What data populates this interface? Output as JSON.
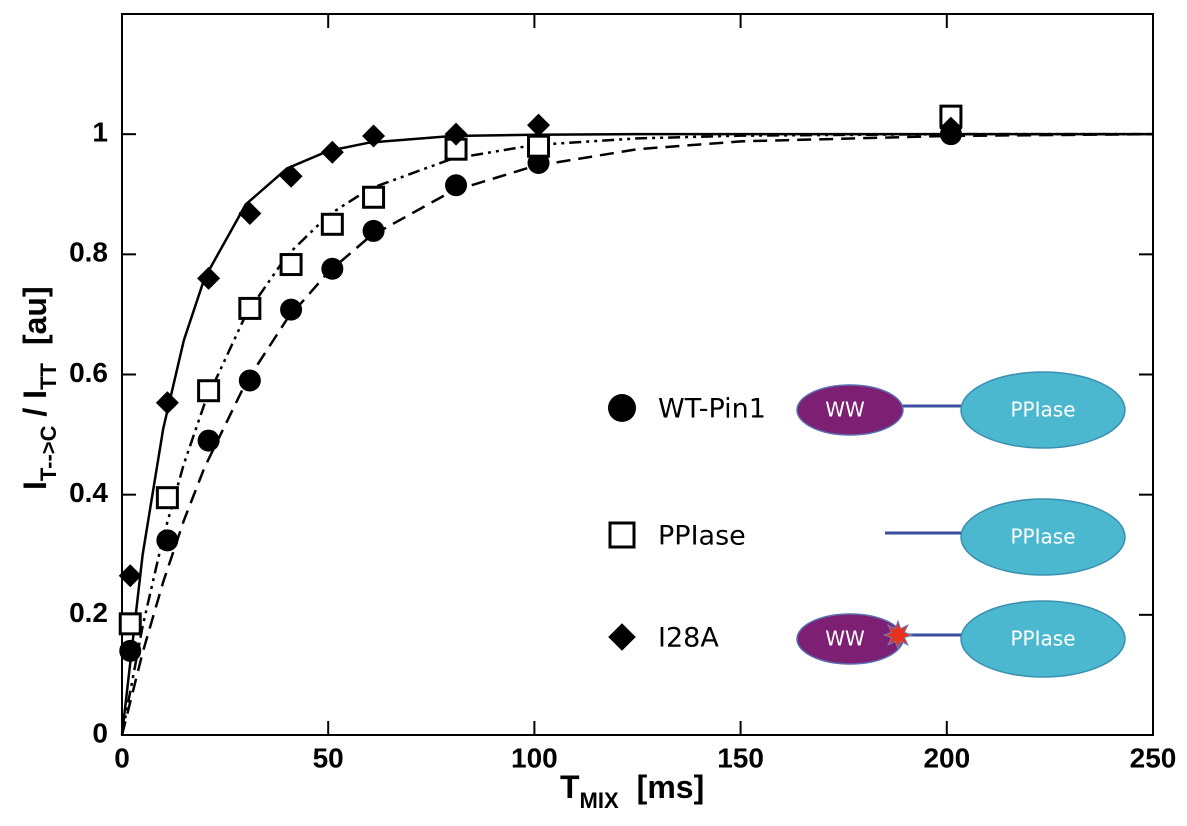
{
  "chart_data": {
    "type": "scatter",
    "x_label": {
      "main": "T",
      "sub": "MIX",
      "unit": "[ms]"
    },
    "y_label": {
      "main": "I",
      "sub": "T-->C",
      "mid": " / I",
      "sub2": "TT",
      "unit": "[au]"
    },
    "xlim": [
      0,
      250
    ],
    "xticks": [
      0,
      50,
      100,
      150,
      200,
      250
    ],
    "ylim": [
      0,
      1.2
    ],
    "yticks": [
      0,
      0.2,
      0.4,
      0.6,
      0.8,
      1
    ],
    "series": [
      {
        "name": "WT-Pin1",
        "marker": "circle",
        "color": "#000000",
        "x": [
          2,
          11,
          21,
          31,
          41,
          51,
          61,
          81,
          101,
          201,
          201
        ],
        "values": [
          0.14,
          0.324,
          0.49,
          0.59,
          0.708,
          0.776,
          0.839,
          0.915,
          0.952,
          1.0,
          1.015
        ],
        "fit": {
          "dash": "14 8",
          "x": [
            0,
            5,
            10,
            15,
            20,
            30,
            40,
            50,
            60,
            80,
            100,
            125,
            150,
            200,
            250
          ],
          "values": [
            0,
            0.137,
            0.255,
            0.357,
            0.445,
            0.586,
            0.692,
            0.77,
            0.829,
            0.905,
            0.947,
            0.975,
            0.988,
            0.997,
            1
          ]
        },
        "diagram": [
          "WW",
          "PPIase"
        ],
        "mutation": false
      },
      {
        "name": "PPIase",
        "marker": "square",
        "color": "#000000",
        "x": [
          2,
          11,
          21,
          31,
          41,
          51,
          61,
          81,
          101,
          201
        ],
        "values": [
          0.185,
          0.395,
          0.573,
          0.71,
          0.783,
          0.85,
          0.895,
          0.975,
          0.98,
          1.03
        ],
        "fit": {
          "dash": "12 5 3 5 3 5",
          "x": [
            0,
            5,
            10,
            15,
            20,
            30,
            40,
            50,
            60,
            80,
            100,
            125,
            150,
            200,
            250
          ],
          "values": [
            0,
            0.181,
            0.33,
            0.451,
            0.551,
            0.699,
            0.798,
            0.865,
            0.909,
            0.959,
            0.982,
            0.993,
            0.9975,
            1,
            1
          ]
        },
        "diagram": [
          "PPIase"
        ],
        "mutation": false
      },
      {
        "name": "I28A",
        "marker": "diamond",
        "color": "#000000",
        "x": [
          2,
          11,
          21,
          31,
          41,
          51,
          61,
          81,
          101,
          201
        ],
        "values": [
          0.265,
          0.553,
          0.76,
          0.868,
          0.93,
          0.97,
          0.997,
          1.0,
          1.015,
          1.01
        ],
        "fit": {
          "dash": "none",
          "x": [
            0,
            5,
            10,
            15,
            20,
            30,
            40,
            50,
            60,
            80,
            100,
            125,
            150,
            200,
            250
          ],
          "values": [
            0,
            0.3,
            0.51,
            0.657,
            0.76,
            0.883,
            0.943,
            0.972,
            0.986,
            0.997,
            0.999,
            1,
            1,
            1,
            1
          ]
        },
        "diagram": [
          "WW",
          "PPIase"
        ],
        "mutation": true
      }
    ]
  }
}
